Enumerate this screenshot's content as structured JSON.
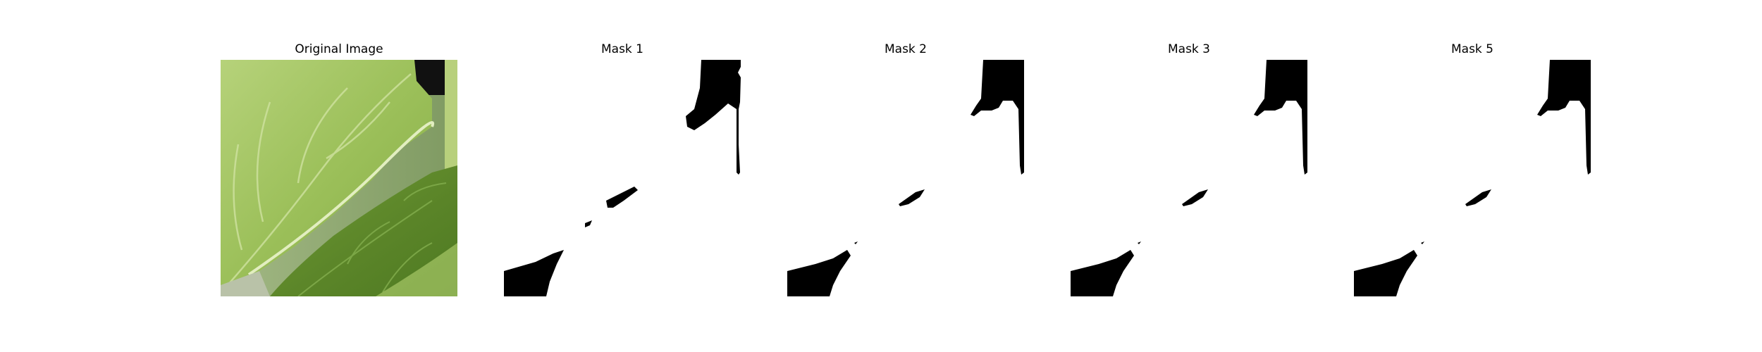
{
  "figure": {
    "panels": [
      {
        "title": "Original Image"
      },
      {
        "title": "Mask 1"
      },
      {
        "title": "Mask 2"
      },
      {
        "title": "Mask 3"
      },
      {
        "title": "Mask 5"
      }
    ]
  },
  "colors": {
    "background": "#ffffff",
    "mask_foreground": "#000000",
    "mask_background": "#ffffff",
    "leaf_light": "#a8c86a",
    "leaf_mid": "#8bb04e",
    "leaf_dark": "#5f8a2e",
    "leaf_shadow": "#3f6a22",
    "gap_dark": "#111111"
  }
}
